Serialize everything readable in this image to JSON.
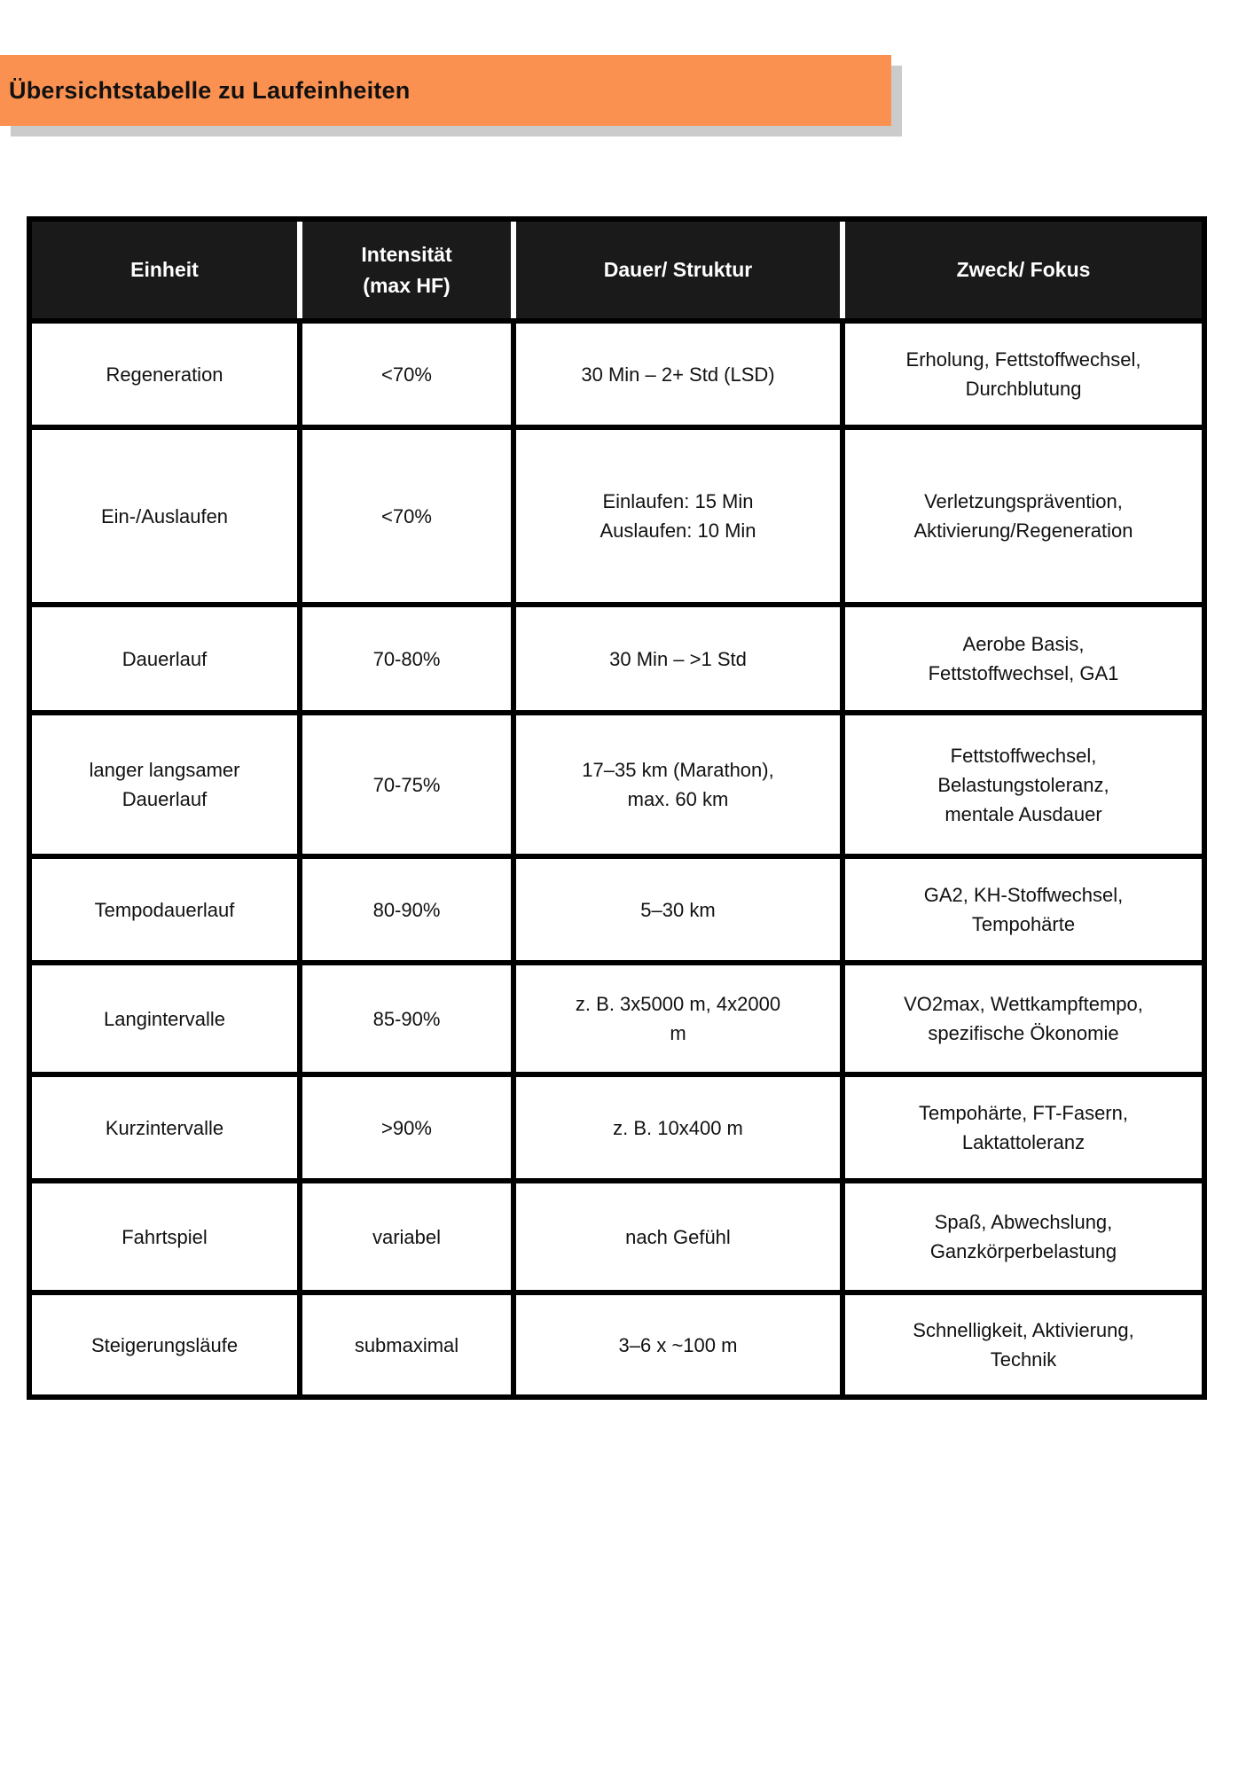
{
  "page": {
    "title": "Übersichtstabelle zu Laufeinheiten"
  },
  "colors": {
    "banner_orange": "#FB9150",
    "banner_shadow_gray": "#CBCBCB",
    "table_header_bg": "#1A1A1A",
    "table_border": "#000000",
    "text": "#111111"
  },
  "table": {
    "headers": [
      "Einheit",
      "Intensität\n(max HF)",
      "Dauer/ Struktur",
      "Zweck/ Fokus"
    ],
    "rows": [
      {
        "einheit": "Regeneration",
        "intensitaet": "<70%",
        "dauer": "30 Min – 2+ Std (LSD)",
        "zweck": "Erholung, Fettstoffwechsel,\nDurchblutung"
      },
      {
        "einheit": "Ein-/Auslaufen",
        "intensitaet": "<70%",
        "dauer": "Einlaufen: 15 Min\nAuslaufen: 10 Min",
        "zweck": "Verletzungsprävention,\nAktivierung/Regeneration"
      },
      {
        "einheit": "Dauerlauf",
        "intensitaet": "70-80%",
        "dauer": "30 Min – >1 Std",
        "zweck": "Aerobe Basis,\nFettstoffwechsel, GA1"
      },
      {
        "einheit": "langer langsamer\nDauerlauf",
        "intensitaet": "70-75%",
        "dauer": "17–35 km (Marathon),\nmax. 60 km",
        "zweck": "Fettstoffwechsel,\nBelastungstoleranz,\nmentale Ausdauer"
      },
      {
        "einheit": "Tempodauerlauf",
        "intensitaet": "80-90%",
        "dauer": "5–30 km",
        "zweck": "GA2, KH-Stoffwechsel,\nTempohärte"
      },
      {
        "einheit": "Langintervalle",
        "intensitaet": "85-90%",
        "dauer": "z. B. 3x5000 m, 4x2000\nm",
        "zweck": "VO2max, Wettkampftempo,\nspezifische Ökonomie"
      },
      {
        "einheit": "Kurzintervalle",
        "intensitaet": ">90%",
        "dauer": "z. B. 10x400 m",
        "zweck": "Tempohärte, FT-Fasern,\nLaktattoleranz"
      },
      {
        "einheit": "Fahrtspiel",
        "intensitaet": "variabel",
        "dauer": "nach Gefühl",
        "zweck": "Spaß, Abwechslung,\nGanzkörperbelastung"
      },
      {
        "einheit": "Steigerungsläufe",
        "intensitaet": "submaximal",
        "dauer": "3–6 x ~100 m",
        "zweck": "Schnelligkeit, Aktivierung,\nTechnik"
      }
    ]
  }
}
